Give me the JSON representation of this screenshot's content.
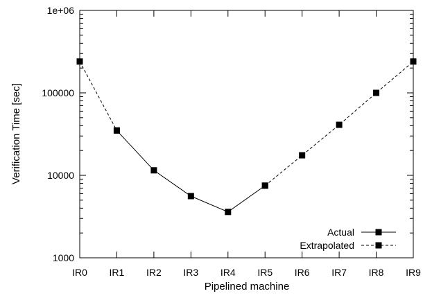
{
  "chart_data": {
    "type": "line",
    "title": "",
    "xlabel": "Pipelined machine",
    "ylabel": "Verification Time  [sec]",
    "y_scale": "log",
    "ylim": [
      1000,
      1000000
    ],
    "y_ticks": [
      {
        "value": 1000,
        "label": "1000"
      },
      {
        "value": 10000,
        "label": "10000"
      },
      {
        "value": 100000,
        "label": "100000"
      },
      {
        "value": 1000000,
        "label": "1e+06"
      }
    ],
    "categories": [
      "IR0",
      "IR1",
      "IR2",
      "IR3",
      "IR4",
      "IR5",
      "IR6",
      "IR7",
      "IR8",
      "IR9"
    ],
    "grid": false,
    "legend_position": "bottom-right",
    "series": [
      {
        "name": "Actual",
        "line_style": "solid",
        "marker": "square",
        "color": "#000000",
        "points": [
          {
            "x": "IR1",
            "y": 35000
          },
          {
            "x": "IR2",
            "y": 11500
          },
          {
            "x": "IR3",
            "y": 5600
          },
          {
            "x": "IR4",
            "y": 3600
          },
          {
            "x": "IR5",
            "y": 7500
          }
        ]
      },
      {
        "name": "Extrapolated",
        "line_style": "dashed",
        "marker": "square",
        "color": "#000000",
        "points": [
          {
            "x": "IR0",
            "y": 240000
          },
          {
            "x": "IR1",
            "y": 35000
          }
        ],
        "points_2": [
          {
            "x": "IR5",
            "y": 7500
          },
          {
            "x": "IR6",
            "y": 17500
          },
          {
            "x": "IR7",
            "y": 41000
          },
          {
            "x": "IR8",
            "y": 100000
          },
          {
            "x": "IR9",
            "y": 240000
          }
        ]
      }
    ]
  }
}
